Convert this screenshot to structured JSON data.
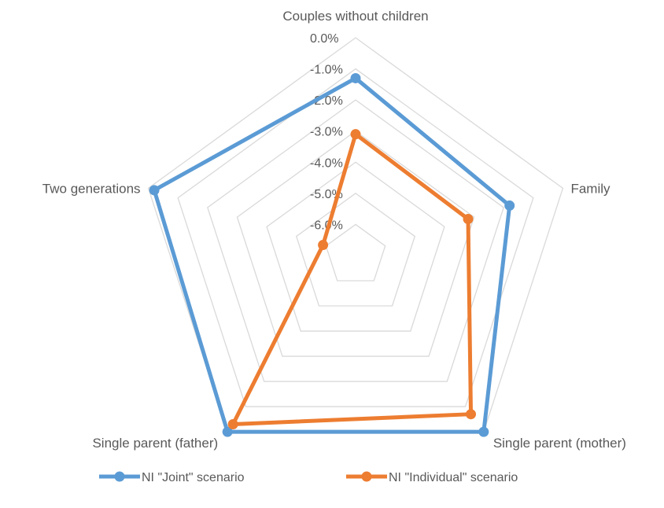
{
  "chart_data": {
    "type": "radar",
    "title": "",
    "categories": [
      "Couples without children",
      "Family",
      "Single parent (mother)",
      "Single parent (father)",
      "Two generations"
    ],
    "rlim": [
      -7.0,
      0.0
    ],
    "ticks": [
      -6.0,
      -5.0,
      -4.0,
      -3.0,
      -2.0,
      -1.0,
      0.0
    ],
    "tick_labels": [
      "-6.0%",
      "-5.0%",
      "-4.0%",
      "-3.0%",
      "-2.0%",
      "-1.0%",
      "0.0%"
    ],
    "grid": true,
    "legend_position": "bottom",
    "series": [
      {
        "name": "NI \"Joint\" scenario",
        "color": "#5B9BD5",
        "values": [
          -1.3,
          -1.8,
          0.0,
          0.0,
          -0.2
        ]
      },
      {
        "name": "NI \"Individual\" scenario",
        "color": "#ED7D31",
        "values": [
          -3.1,
          -3.2,
          -0.7,
          -0.3,
          -5.9
        ]
      }
    ]
  }
}
